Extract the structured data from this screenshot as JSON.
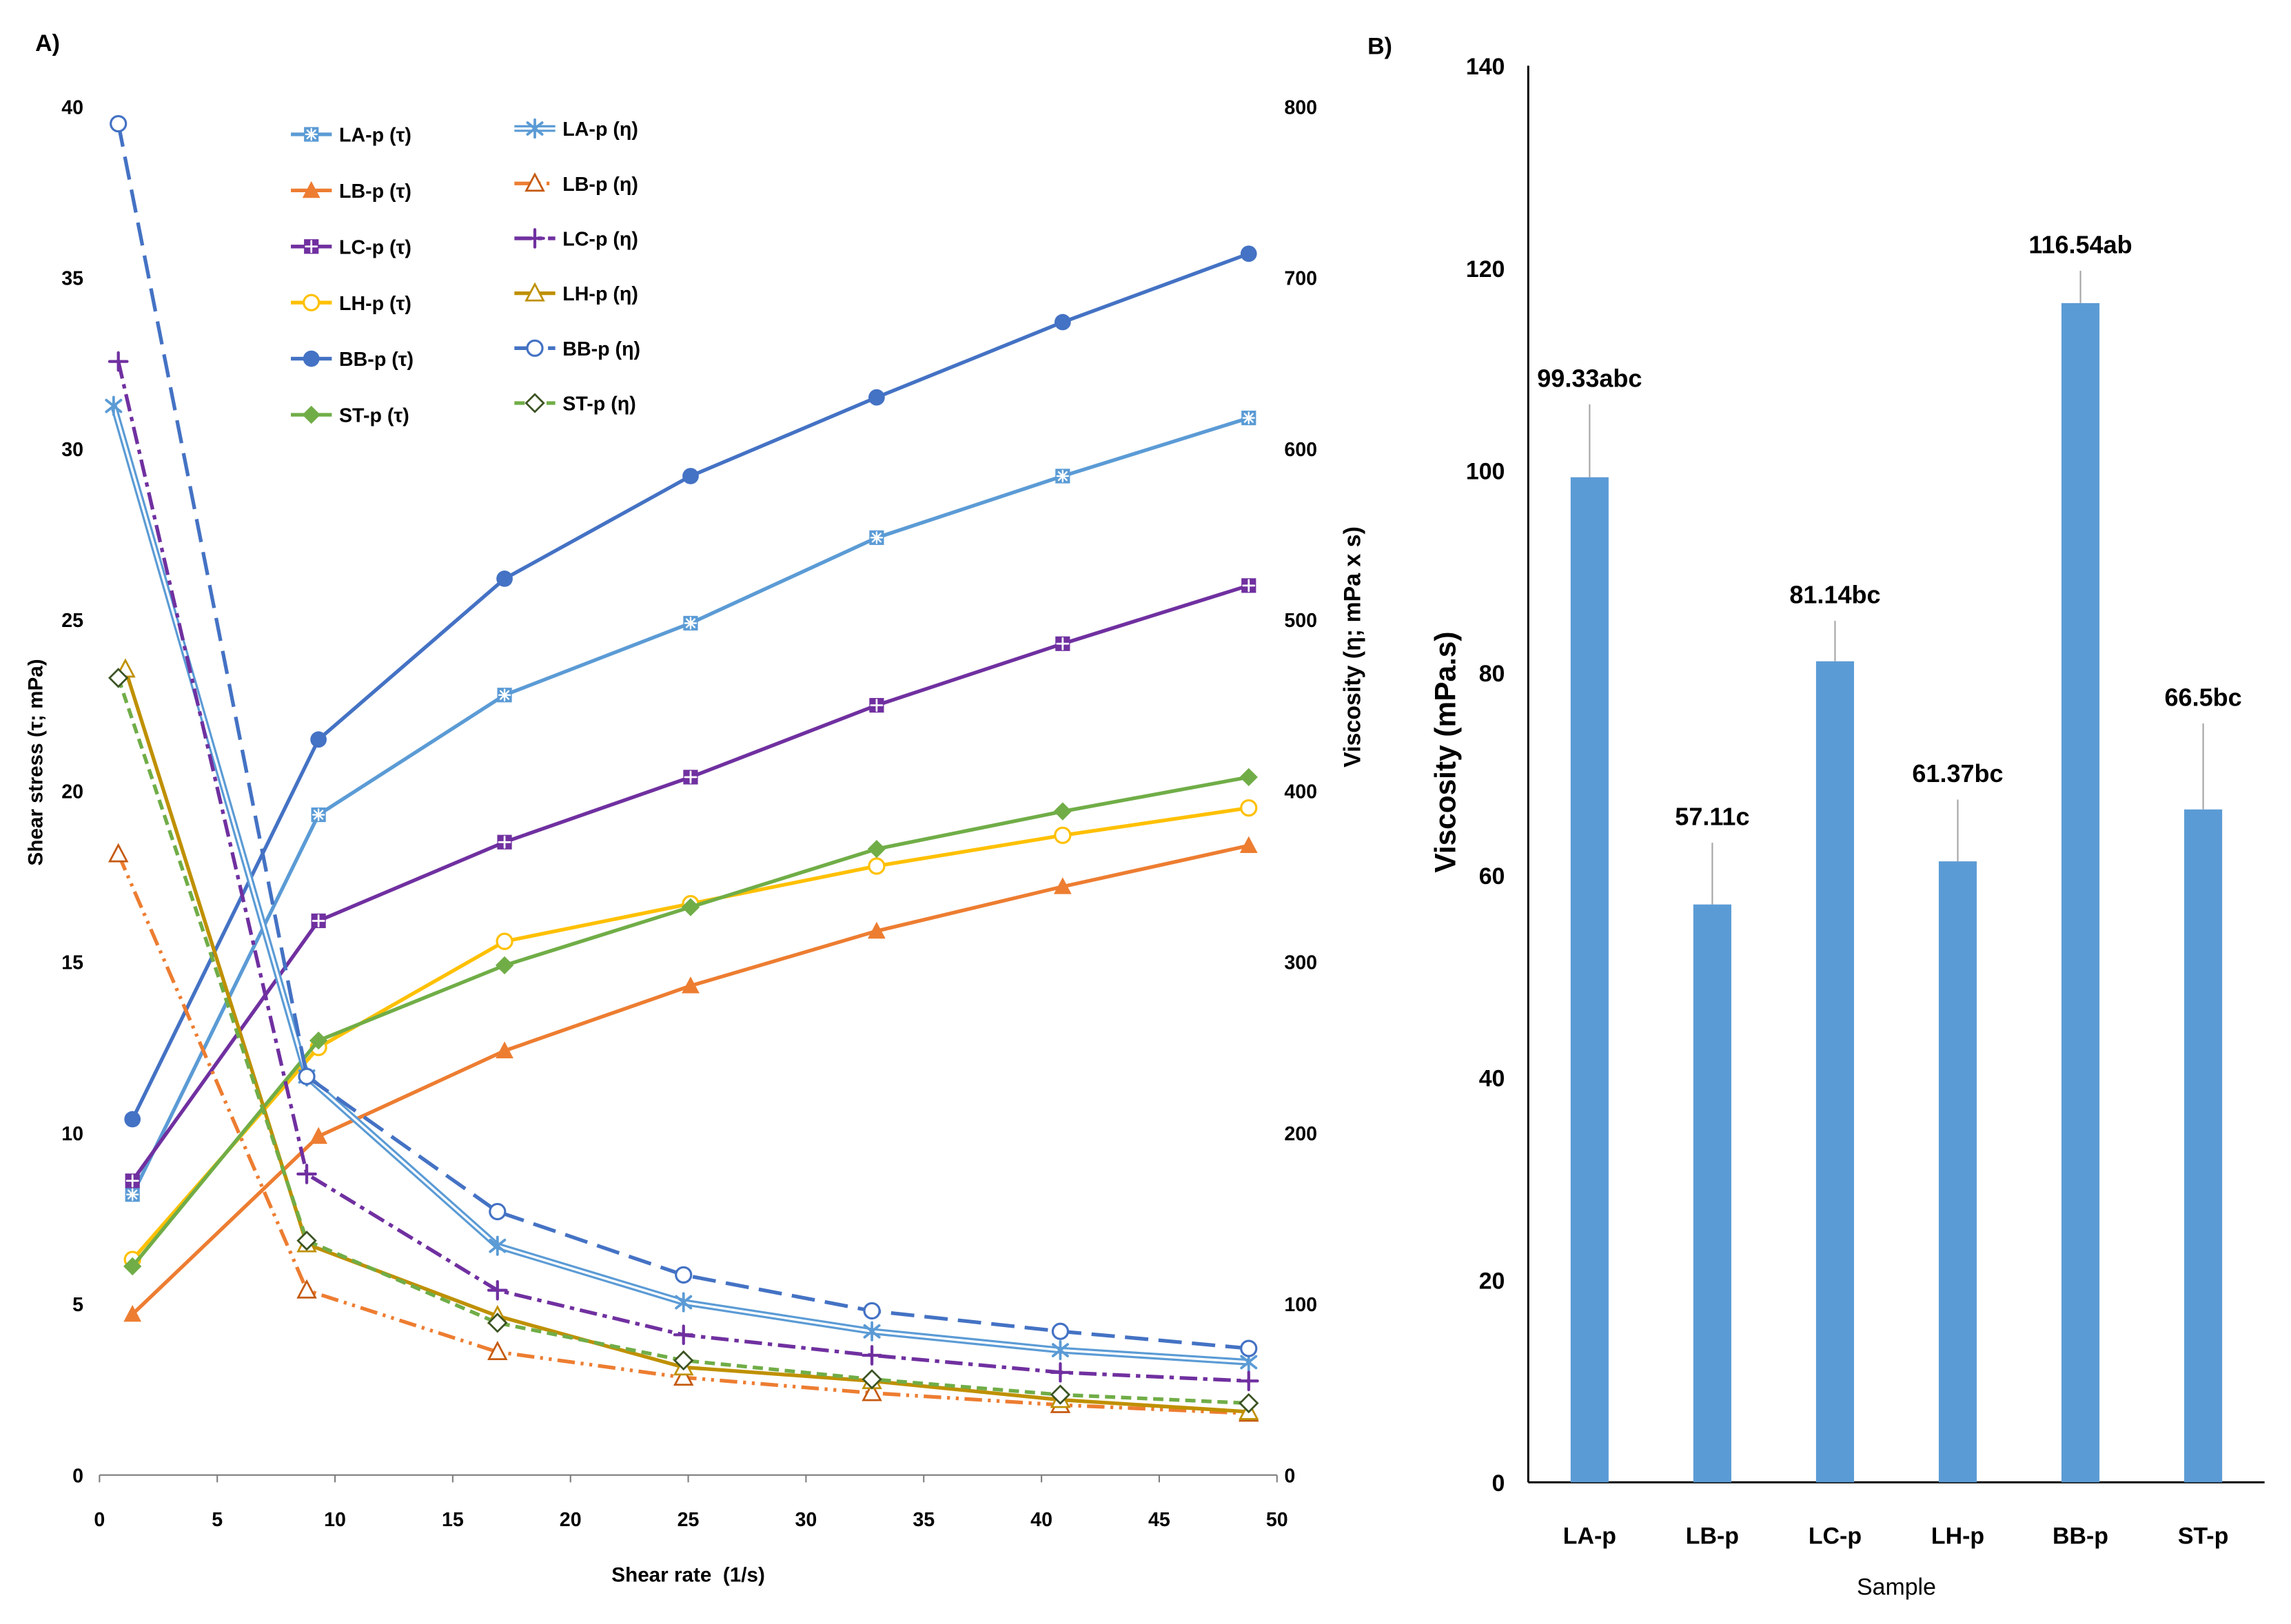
{
  "chart_data": [
    {
      "panel_label": "A)",
      "type": "line",
      "xlabel": "Shear rate  (1/s)",
      "ylabel": "Shear stress (τ; mPa)",
      "y2label": "Viscosity (η; mPa x s)",
      "xlim": [
        0,
        50
      ],
      "ylim": [
        0,
        40
      ],
      "y2lim": [
        0,
        800
      ],
      "xticks": [
        0,
        5,
        10,
        15,
        20,
        25,
        30,
        35,
        40,
        45,
        50
      ],
      "yticks": [
        0,
        5,
        10,
        15,
        20,
        25,
        30,
        35,
        40
      ],
      "y2ticks": [
        0,
        100,
        200,
        300,
        400,
        500,
        600,
        700,
        800
      ],
      "grid": false,
      "legend_position": "top-left",
      "series": [
        {
          "name": "LA-p (τ)",
          "axis": "left",
          "color": "#5B9BD5",
          "line_style": "solid",
          "marker": "square-asterisk",
          "x": [
            1.4,
            9.3,
            17.2,
            25.1,
            33.0,
            40.9,
            48.8
          ],
          "y": [
            8.2,
            19.3,
            22.8,
            24.9,
            27.4,
            29.2,
            30.9
          ]
        },
        {
          "name": "LB-p (τ)",
          "axis": "left",
          "color": "#ED7D31",
          "line_style": "solid",
          "marker": "filled-triangle",
          "x": [
            1.4,
            9.3,
            17.2,
            25.1,
            33.0,
            40.9,
            48.8
          ],
          "y": [
            4.7,
            9.9,
            12.4,
            14.3,
            15.9,
            17.2,
            18.4
          ]
        },
        {
          "name": "LC-p (τ)",
          "axis": "left",
          "color": "#7030A0",
          "line_style": "solid",
          "marker": "square-plus",
          "x": [
            1.4,
            9.3,
            17.2,
            25.1,
            33.0,
            40.9,
            48.8
          ],
          "y": [
            8.6,
            16.2,
            18.5,
            20.4,
            22.5,
            24.3,
            26.0
          ]
        },
        {
          "name": "LH-p (τ)",
          "axis": "left",
          "color": "#FFC000",
          "line_style": "solid",
          "marker": "open-circle",
          "x": [
            1.4,
            9.3,
            17.2,
            25.1,
            33.0,
            40.9,
            48.8
          ],
          "y": [
            6.3,
            12.5,
            15.6,
            16.7,
            17.8,
            18.7,
            19.5
          ]
        },
        {
          "name": "BB-p (τ)",
          "axis": "left",
          "color": "#4472C4",
          "line_style": "solid",
          "marker": "filled-circle",
          "x": [
            1.4,
            9.3,
            17.2,
            25.1,
            33.0,
            40.9,
            48.8
          ],
          "y": [
            10.4,
            21.5,
            26.2,
            29.2,
            31.5,
            33.7,
            35.7
          ]
        },
        {
          "name": "ST-p (τ)",
          "axis": "left",
          "color": "#70AD47",
          "line_style": "solid",
          "marker": "filled-diamond",
          "x": [
            1.4,
            9.3,
            17.2,
            25.1,
            33.0,
            40.9,
            48.8
          ],
          "y": [
            6.1,
            12.7,
            14.9,
            16.6,
            18.3,
            19.4,
            20.4
          ]
        },
        {
          "name": "LA-p (η)",
          "axis": "right",
          "color": "#5B9BD5",
          "line_style": "double",
          "marker": "asterisk",
          "x": [
            0.6,
            8.8,
            16.9,
            24.8,
            32.8,
            40.8,
            48.8
          ],
          "y": [
            625,
            233,
            134,
            101,
            84,
            73,
            66
          ]
        },
        {
          "name": "LB-p (η)",
          "axis": "right",
          "color": "#ED7D31",
          "marker_color": "#C55A11",
          "line_style": "dash-dot-dot",
          "marker": "open-triangle",
          "x": [
            0.8,
            8.8,
            16.9,
            24.8,
            32.8,
            40.8,
            48.8
          ],
          "y": [
            363,
            108,
            72,
            57,
            48,
            41,
            36
          ]
        },
        {
          "name": "LC-p (η)",
          "axis": "right",
          "color": "#7030A0",
          "line_style": "dash-dot",
          "marker": "plus",
          "x": [
            0.8,
            8.8,
            16.9,
            24.8,
            32.8,
            40.8,
            48.8
          ],
          "y": [
            651,
            176,
            108,
            82,
            70,
            60,
            55
          ]
        },
        {
          "name": "LH-p (η)",
          "axis": "right",
          "color": "#BF9000",
          "line_style": "solid",
          "marker": "open-triangle",
          "x": [
            1.1,
            8.8,
            16.9,
            24.8,
            32.8,
            40.8,
            48.8
          ],
          "y": [
            471,
            135,
            93,
            63,
            55,
            44,
            37
          ]
        },
        {
          "name": "BB-p (η)",
          "axis": "right",
          "color": "#4472C4",
          "line_style": "long-dash",
          "marker": "open-circle",
          "x": [
            0.8,
            8.8,
            16.9,
            24.8,
            32.8,
            40.8,
            48.8
          ],
          "y": [
            790,
            233,
            154,
            117,
            96,
            84,
            74
          ]
        },
        {
          "name": "ST-p (η)",
          "axis": "right",
          "color": "#70AD47",
          "marker_color": "#3B5323",
          "line_style": "dash",
          "marker": "open-diamond",
          "x": [
            0.8,
            8.8,
            16.9,
            24.8,
            32.8,
            40.8,
            48.8
          ],
          "y": [
            466,
            137,
            89,
            67,
            56,
            47,
            42
          ]
        }
      ]
    },
    {
      "panel_label": "B)",
      "type": "bar",
      "xlabel": "Sample",
      "ylabel": "Viscosity (mPa.s)",
      "ylim": [
        0,
        140
      ],
      "yticks": [
        0,
        20,
        40,
        60,
        80,
        100,
        120,
        140
      ],
      "grid": false,
      "categories": [
        "LA-p",
        "LB-p",
        "LC-p",
        "LH-p",
        "BB-p",
        "ST-p"
      ],
      "values": [
        99.33,
        57.11,
        81.14,
        61.37,
        116.54,
        66.5
      ],
      "error_plus": [
        7.2,
        6.1,
        4.0,
        6.1,
        3.2,
        8.5
      ],
      "data_labels": [
        "99.33abc",
        "57.11c",
        "81.14bc",
        "61.37bc",
        "116.54ab",
        "66.5bc"
      ],
      "color": "#5B9BD5",
      "error_color": "#A5A5A5"
    }
  ]
}
